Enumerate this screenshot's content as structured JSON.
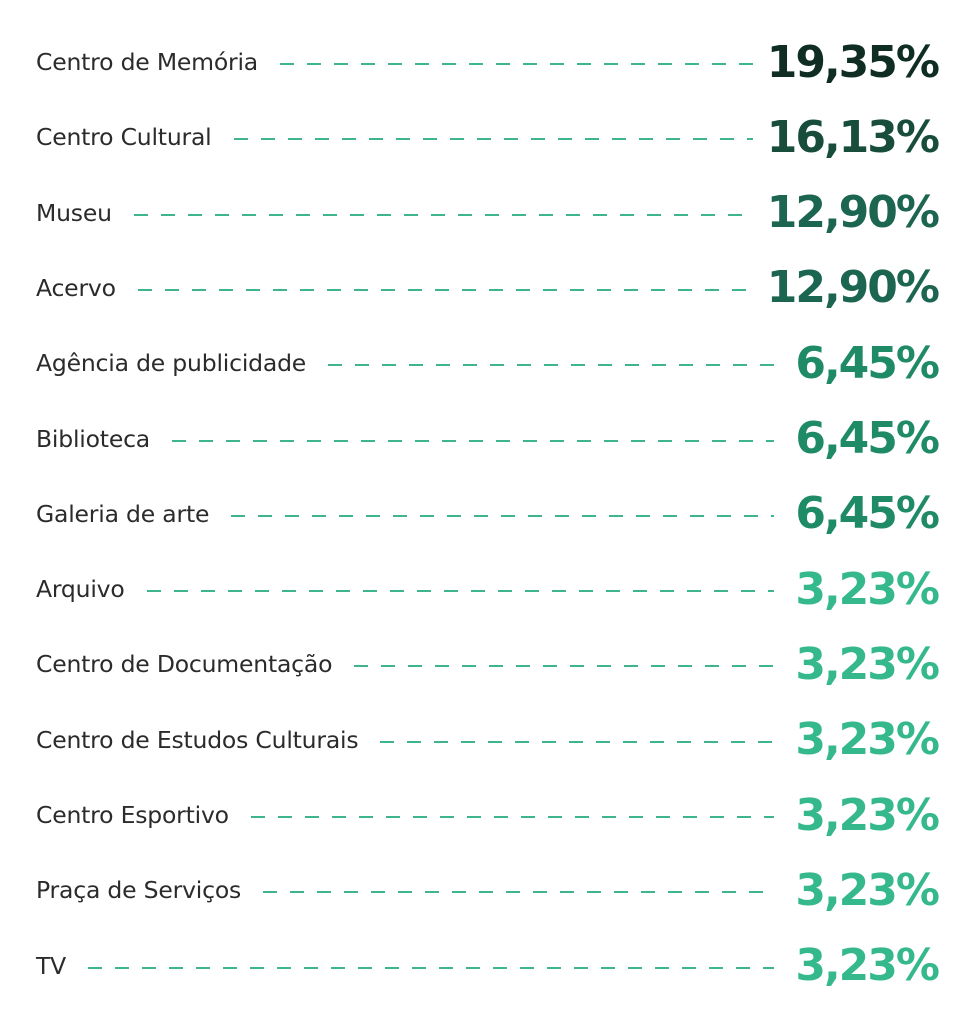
{
  "chart_data": {
    "type": "table",
    "title": "",
    "categories": [
      "Centro de Memória",
      "Centro Cultural",
      "Museu",
      "Acervo",
      "Agência de publicidade",
      "Biblioteca",
      "Galeria de arte",
      "Arquivo",
      "Centro de Documentação",
      "Centro de Estudos Culturais",
      "Centro Esportivo",
      "Praça de Serviços",
      "TV"
    ],
    "values": [
      19.35,
      16.13,
      12.9,
      12.9,
      6.45,
      6.45,
      6.45,
      3.23,
      3.23,
      3.23,
      3.23,
      3.23,
      3.23
    ],
    "value_labels": [
      "19,35%",
      "16,13%",
      "12,90%",
      "12,90%",
      "6,45%",
      "6,45%",
      "6,45%",
      "3,23%",
      "3,23%",
      "3,23%",
      "3,23%",
      "3,23%",
      "3,23%"
    ],
    "unit": "%",
    "value_colors": {
      "19.35": "#0f2d22",
      "16.13": "#184d3c",
      "12.90": "#1c6550",
      "6.45": "#1f8a66",
      "3.23": "#35b88c"
    },
    "leader_color": "#3fb58c",
    "label_color": "#2b2b2b",
    "grid": false,
    "legend": "none"
  }
}
